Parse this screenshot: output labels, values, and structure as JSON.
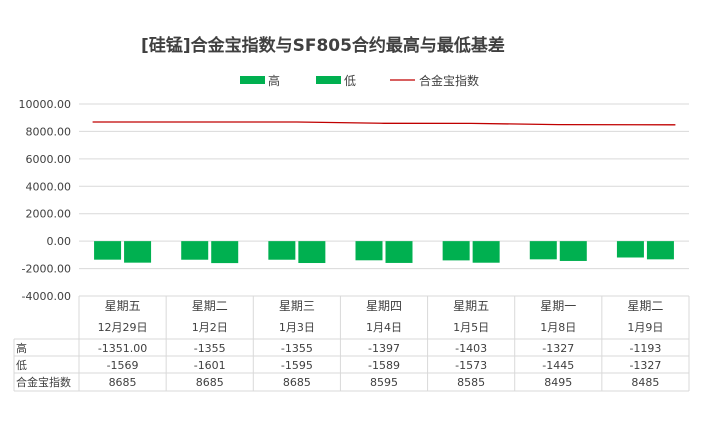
{
  "chart_data": {
    "type": "bar",
    "title": "[硅锰]合金宝指数与SF805合约最高与最低基差",
    "legend": [
      {
        "name": "高",
        "kind": "bar",
        "color": "#00b050"
      },
      {
        "name": "低",
        "kind": "bar",
        "color": "#00b050"
      },
      {
        "name": "合金宝指数",
        "kind": "line",
        "color": "#c00000"
      }
    ],
    "y_ticks": [
      "10000.00",
      "8000.00",
      "6000.00",
      "4000.00",
      "2000.00",
      "0.00",
      "-2000.00",
      "-4000.00"
    ],
    "ylim": [
      -4000,
      10000
    ],
    "grid": true,
    "categories": [
      {
        "weekday": "星期五",
        "date": "12月29日"
      },
      {
        "weekday": "星期二",
        "date": "1月2日"
      },
      {
        "weekday": "星期三",
        "date": "1月3日"
      },
      {
        "weekday": "星期四",
        "date": "1月4日"
      },
      {
        "weekday": "星期五",
        "date": "1月5日"
      },
      {
        "weekday": "星期一",
        "date": "1月8日"
      },
      {
        "weekday": "星期二",
        "date": "1月9日"
      }
    ],
    "series": [
      {
        "name": "高",
        "type": "bar",
        "color": "#00b050",
        "values": [
          -1351,
          -1355,
          -1355,
          -1397,
          -1403,
          -1327,
          -1193
        ],
        "display": [
          "-1351.00",
          "-1355",
          "-1355",
          "-1397",
          "-1403",
          "-1327",
          "-1193"
        ]
      },
      {
        "name": "低",
        "type": "bar",
        "color": "#00b050",
        "values": [
          -1569,
          -1601,
          -1595,
          -1589,
          -1573,
          -1445,
          -1327
        ],
        "display": [
          "-1569",
          "-1601",
          "-1595",
          "-1589",
          "-1573",
          "-1445",
          "-1327"
        ]
      },
      {
        "name": "合金宝指数",
        "type": "line",
        "color": "#c00000",
        "values": [
          8685,
          8685,
          8685,
          8595,
          8585,
          8495,
          8485
        ],
        "display": [
          "8685",
          "8685",
          "8685",
          "8595",
          "8585",
          "8495",
          "8485"
        ]
      }
    ]
  }
}
